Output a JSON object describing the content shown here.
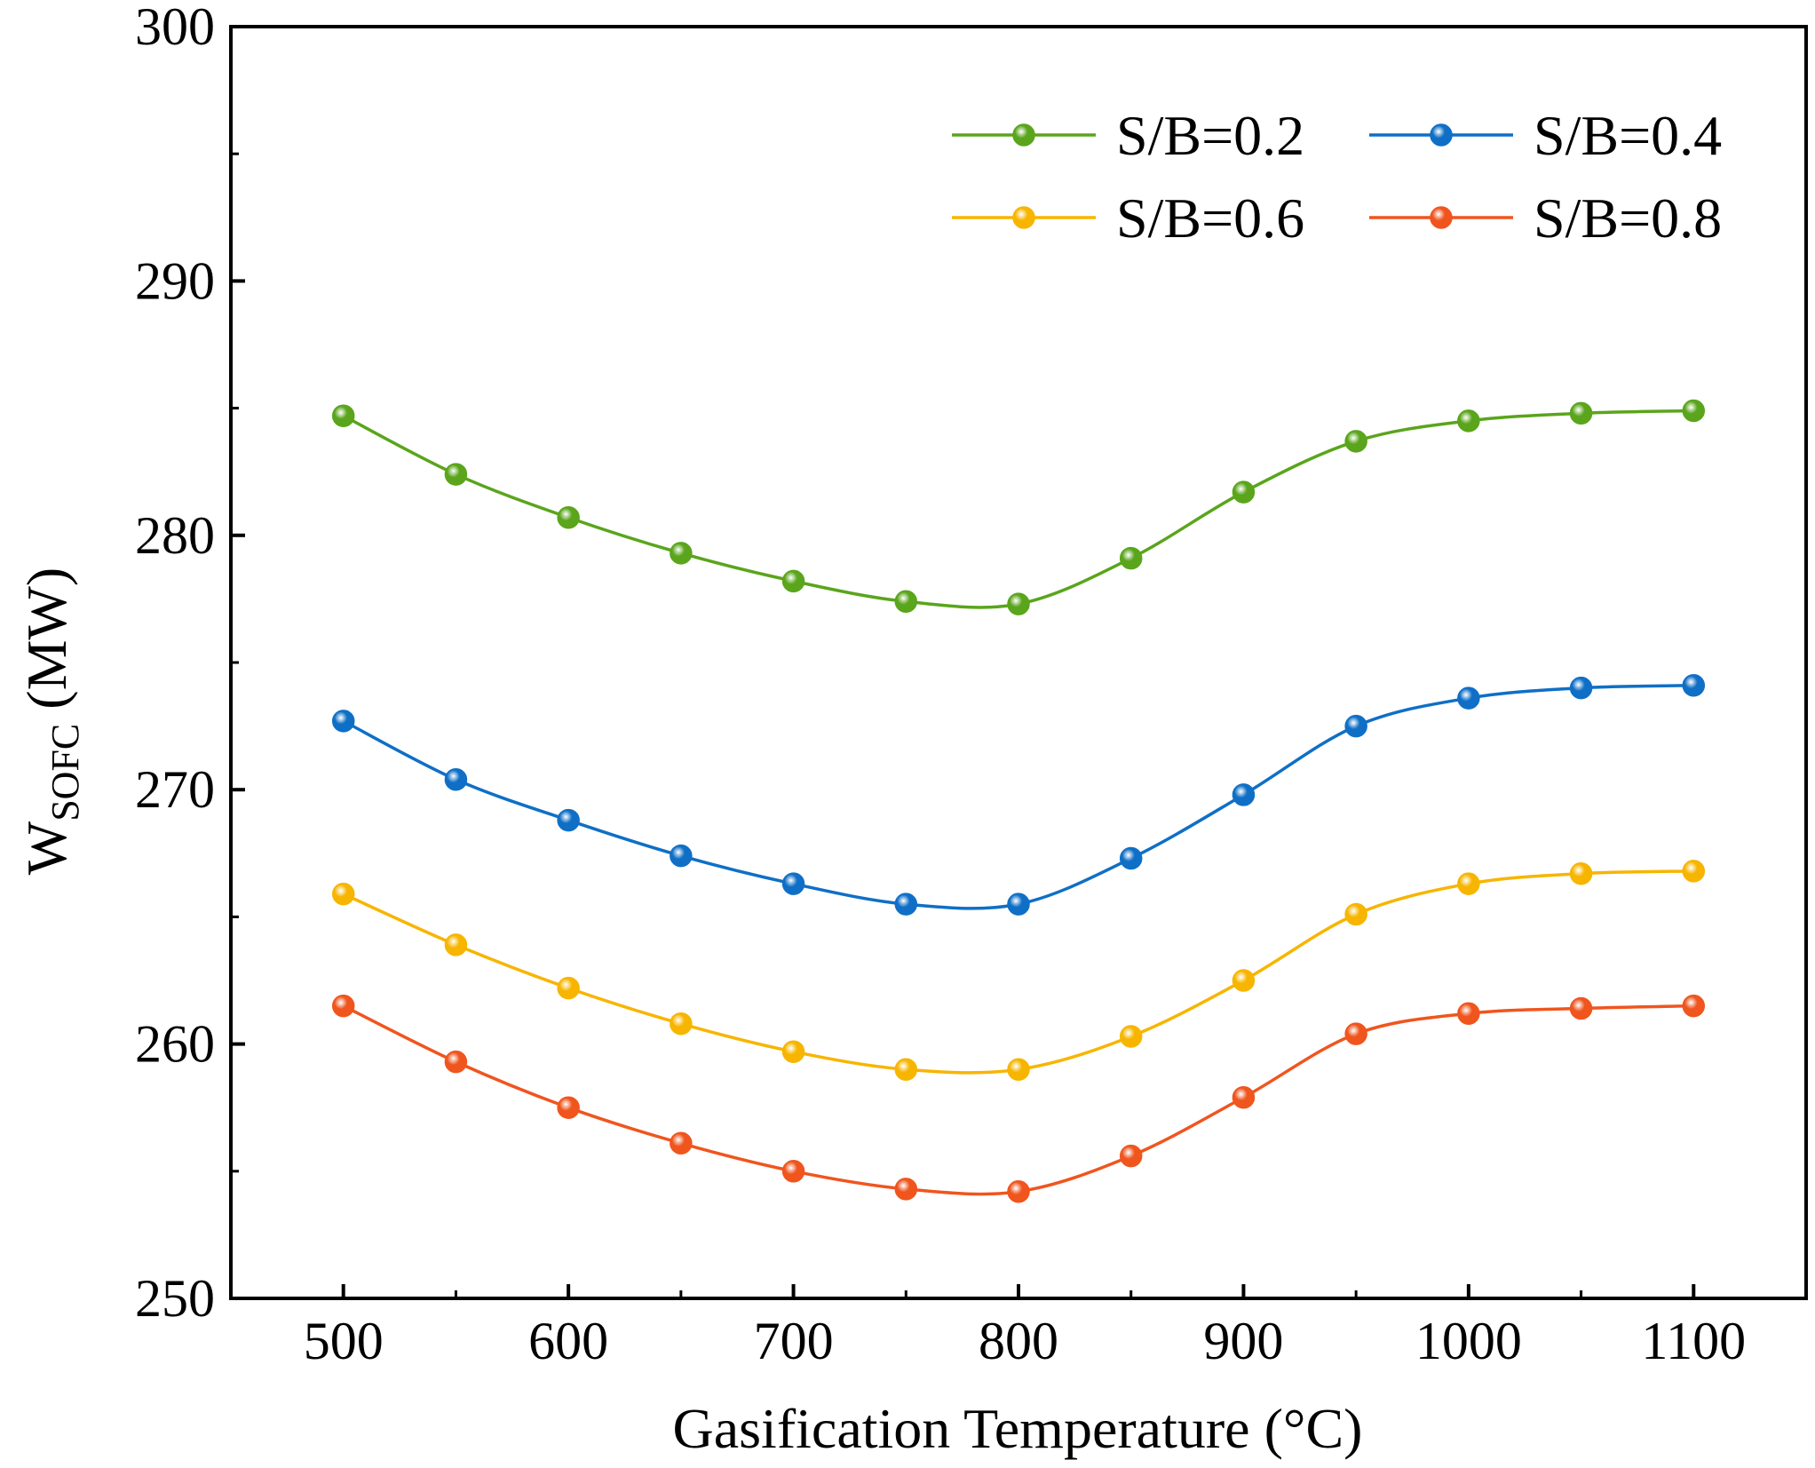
{
  "chart_data": {
    "type": "line",
    "title": "",
    "xlabel": "Gasification Temperature (°C)",
    "ylabel_main": "W",
    "ylabel_sub": "SOFC",
    "ylabel_unit": " (MW)",
    "xlim": [
      450,
      1150
    ],
    "ylim": [
      250,
      300
    ],
    "xticks": [
      500,
      600,
      700,
      800,
      900,
      1000,
      1100
    ],
    "yticks": [
      250,
      260,
      270,
      280,
      290,
      300
    ],
    "x": [
      500,
      550,
      600,
      650,
      700,
      750,
      800,
      850,
      900,
      950,
      1000,
      1050,
      1100
    ],
    "legend_position": "top-right",
    "series": [
      {
        "name": "S/B=0.2",
        "color": "#5aa51c",
        "values": [
          284.7,
          282.4,
          280.7,
          279.3,
          278.2,
          277.4,
          277.3,
          279.1,
          281.7,
          283.7,
          284.5,
          284.8,
          284.9
        ]
      },
      {
        "name": "S/B=0.4",
        "color": "#0f6fc6",
        "values": [
          272.7,
          270.4,
          268.8,
          267.4,
          266.3,
          265.5,
          265.5,
          267.3,
          269.8,
          272.5,
          273.6,
          274.0,
          274.1
        ]
      },
      {
        "name": "S/B=0.6",
        "color": "#f7b500",
        "values": [
          265.9,
          263.9,
          262.2,
          260.8,
          259.7,
          259.0,
          259.0,
          260.3,
          262.5,
          265.1,
          266.3,
          266.7,
          266.8
        ]
      },
      {
        "name": "S/B=0.8",
        "color": "#f0551e",
        "values": [
          261.5,
          259.3,
          257.5,
          256.1,
          255.0,
          254.3,
          254.2,
          255.6,
          257.9,
          260.4,
          261.2,
          261.4,
          261.5
        ]
      }
    ]
  }
}
